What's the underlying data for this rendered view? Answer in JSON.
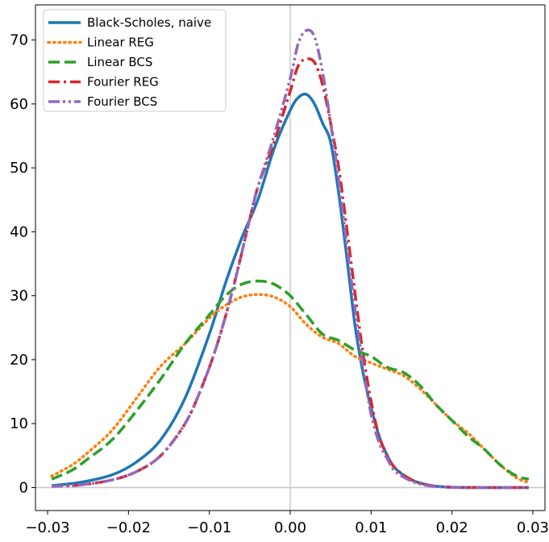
{
  "chart_data": {
    "type": "line",
    "title": "",
    "xlabel": "",
    "ylabel": "",
    "xlim": [
      -0.0315,
      0.0315
    ],
    "ylim": [
      -3.6,
      75.5
    ],
    "xticks": [
      -0.03,
      -0.02,
      -0.01,
      0.0,
      0.01,
      0.02,
      0.03
    ],
    "xtick_labels": [
      "−0.03",
      "−0.02",
      "−0.01",
      "0.00",
      "0.01",
      "0.02",
      "0.03"
    ],
    "yticks": [
      0,
      10,
      20,
      30,
      40,
      50,
      60,
      70
    ],
    "ytick_labels": [
      "0",
      "10",
      "20",
      "30",
      "40",
      "50",
      "60",
      "70"
    ],
    "reference_lines": {
      "horizontal_y": 0,
      "vertical_x": 0,
      "color": "#c8c8c8"
    },
    "grid": false,
    "legend_position": "upper left",
    "series": [
      {
        "name": "Black-Scholes, naive",
        "color": "#1f77b4",
        "linestyle": "solid",
        "x": [
          -0.0295,
          -0.026,
          -0.022,
          -0.019,
          -0.016,
          -0.013,
          -0.01,
          -0.008,
          -0.006,
          -0.004,
          -0.002,
          0.0,
          0.001,
          0.002,
          0.003,
          0.004,
          0.005,
          0.006,
          0.007,
          0.008,
          0.009,
          0.01,
          0.011,
          0.012,
          0.013,
          0.015,
          0.017,
          0.019,
          0.02,
          0.022,
          0.025,
          0.0295
        ],
        "y": [
          0.3,
          0.8,
          2.0,
          4.0,
          7.5,
          14.0,
          24.0,
          32.0,
          39.0,
          45.0,
          53.0,
          59.0,
          61.0,
          61.5,
          60.0,
          57.0,
          54.0,
          46.0,
          36.0,
          25.5,
          18.0,
          12.5,
          8.0,
          5.0,
          3.0,
          1.2,
          0.4,
          0.1,
          0.05,
          0.0,
          0.0,
          0.0
        ]
      },
      {
        "name": "Linear REG",
        "color": "#ff7f0e",
        "linestyle": "dotted",
        "x": [
          -0.0295,
          -0.027,
          -0.025,
          -0.022,
          -0.019,
          -0.016,
          -0.013,
          -0.01,
          -0.008,
          -0.006,
          -0.004,
          -0.002,
          0.0,
          0.002,
          0.004,
          0.006,
          0.008,
          0.01,
          0.012,
          0.014,
          0.016,
          0.018,
          0.02,
          0.022,
          0.024,
          0.026,
          0.028,
          0.0295
        ],
        "y": [
          1.8,
          3.5,
          5.5,
          9.0,
          14.0,
          19.0,
          22.5,
          26.5,
          28.5,
          29.8,
          30.2,
          29.8,
          28.3,
          25.5,
          23.5,
          22.5,
          20.5,
          19.5,
          18.5,
          17.5,
          15.5,
          13.0,
          10.5,
          8.5,
          6.0,
          3.5,
          1.5,
          0.8
        ]
      },
      {
        "name": "Linear BCS",
        "color": "#2ca02c",
        "linestyle": "dashed",
        "x": [
          -0.0295,
          -0.027,
          -0.025,
          -0.022,
          -0.019,
          -0.016,
          -0.013,
          -0.01,
          -0.008,
          -0.006,
          -0.004,
          -0.002,
          0.0,
          0.002,
          0.004,
          0.006,
          0.008,
          0.01,
          0.012,
          0.014,
          0.016,
          0.018,
          0.02,
          0.022,
          0.024,
          0.026,
          0.028,
          0.0295
        ],
        "y": [
          1.3,
          2.7,
          4.5,
          7.5,
          12.0,
          17.0,
          22.5,
          27.0,
          30.0,
          31.8,
          32.3,
          31.8,
          30.0,
          27.0,
          24.0,
          23.0,
          21.5,
          20.5,
          18.8,
          18.0,
          16.0,
          13.0,
          10.5,
          8.0,
          6.0,
          3.5,
          1.8,
          1.3
        ]
      },
      {
        "name": "Fourier REG",
        "color": "#d62728",
        "linestyle": "dashdot",
        "x": [
          -0.0295,
          -0.026,
          -0.022,
          -0.019,
          -0.016,
          -0.013,
          -0.011,
          -0.009,
          -0.007,
          -0.005,
          -0.004,
          -0.002,
          0.0,
          0.001,
          0.002,
          0.003,
          0.004,
          0.005,
          0.006,
          0.007,
          0.008,
          0.009,
          0.01,
          0.011,
          0.012,
          0.013,
          0.015,
          0.017,
          0.019,
          0.021,
          0.025,
          0.0295
        ],
        "y": [
          0.2,
          0.4,
          1.2,
          2.5,
          5.0,
          10.0,
          15.5,
          22.5,
          31.5,
          42.0,
          47.0,
          54.0,
          62.0,
          66.0,
          67.0,
          66.5,
          63.0,
          57.0,
          50.0,
          40.5,
          30.5,
          21.0,
          13.5,
          8.0,
          5.0,
          3.0,
          1.2,
          0.4,
          0.1,
          0.0,
          0.0,
          0.0
        ]
      },
      {
        "name": "Fourier BCS",
        "color": "#9467bd",
        "linestyle": "dashdotdot",
        "x": [
          -0.0295,
          -0.026,
          -0.022,
          -0.019,
          -0.016,
          -0.013,
          -0.011,
          -0.009,
          -0.007,
          -0.005,
          -0.004,
          -0.002,
          0.0,
          0.001,
          0.002,
          0.003,
          0.004,
          0.005,
          0.006,
          0.007,
          0.008,
          0.009,
          0.01,
          0.011,
          0.012,
          0.013,
          0.015,
          0.017,
          0.019,
          0.021,
          0.025,
          0.0295
        ],
        "y": [
          0.2,
          0.4,
          1.2,
          2.5,
          5.0,
          10.0,
          15.5,
          22.5,
          31.5,
          42.0,
          47.0,
          55.0,
          64.0,
          69.5,
          71.5,
          70.5,
          65.0,
          57.0,
          48.0,
          38.0,
          28.0,
          19.0,
          11.5,
          7.0,
          4.5,
          2.5,
          1.0,
          0.3,
          0.1,
          0.0,
          0.0,
          0.0
        ]
      }
    ]
  }
}
